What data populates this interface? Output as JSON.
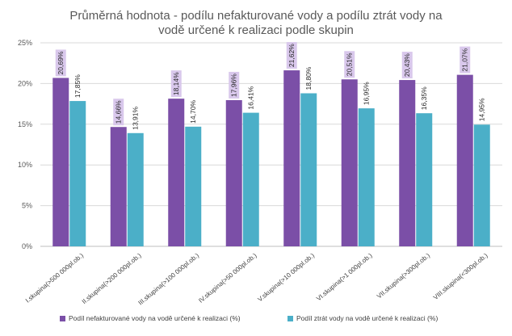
{
  "chart_data": {
    "type": "bar",
    "title": [
      "Průměrná hodnota - podílu nefakturované vody  a podílu ztrát vody na",
      "vodě určené k realizaci  podle skupin"
    ],
    "categories": [
      "I.skupina(>500 000pl.ob.)",
      "II.skupina(>200 000pl.ob.)",
      "III.skupina(>100 000pl.ob.)",
      "IV.skupina(>50 000pl.ob.)",
      "V.skupina(>10 000pl.ob.)",
      "VI.skupina(>1 000pl.ob.)",
      "VII.skupina(>300pl.ob.)",
      "VIII.skupina(<300pl.ob.)"
    ],
    "series": [
      {
        "name": "Podíl nefakturované vody na vodě určené k realizaci (%)",
        "values": [
          20.69,
          14.66,
          18.14,
          17.96,
          21.62,
          20.51,
          20.43,
          21.07
        ],
        "labels": [
          "20,69%",
          "14,66%",
          "18,14%",
          "17,96%",
          "21,62%",
          "20,51%",
          "20,43%",
          "21,07%"
        ],
        "color": "#7B4FA7",
        "label_bg": "#D9C8EC"
      },
      {
        "name": "Podíl ztrát vody na vodě určené k realizaci (%)",
        "values": [
          17.85,
          13.91,
          14.7,
          16.41,
          18.8,
          16.95,
          16.35,
          14.95
        ],
        "labels": [
          "17,85%",
          "13,91%",
          "14,70%",
          "16,41%",
          "18,80%",
          "16,95%",
          "16,35%",
          "14,95%"
        ],
        "color": "#4BAFC8"
      }
    ],
    "y_ticks": [
      0,
      5,
      10,
      15,
      20,
      25
    ],
    "y_tick_labels": [
      "0%",
      "5%",
      "10%",
      "15%",
      "20%",
      "25%"
    ],
    "ylim": [
      0,
      25
    ],
    "grid": true,
    "legend_position": "bottom",
    "xlabel": "",
    "ylabel": ""
  }
}
